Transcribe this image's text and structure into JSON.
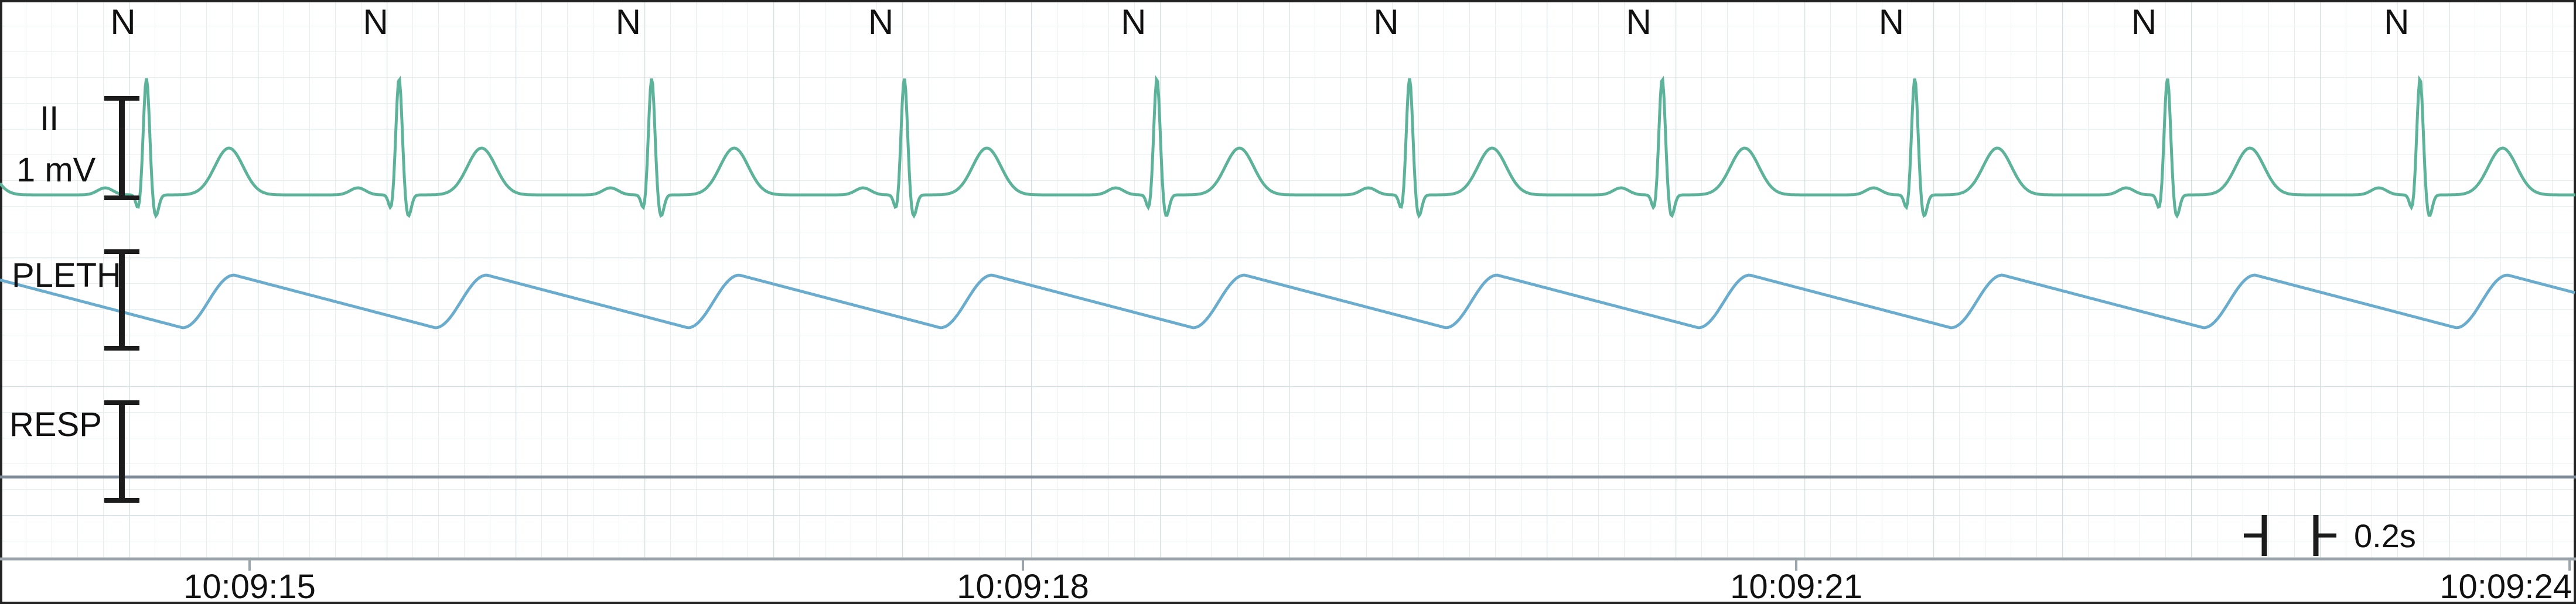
{
  "chart_data": {
    "type": "line",
    "beat_labels": [
      "N",
      "N",
      "N",
      "N",
      "N",
      "N",
      "N",
      "N",
      "N",
      "N"
    ],
    "beat_times_s": [
      0.0,
      0.98,
      1.96,
      2.94,
      3.92,
      4.9,
      5.88,
      6.86,
      7.84,
      8.82
    ],
    "time_ticks": [
      "10:09:15",
      "10:09:18",
      "10:09:21",
      "10:09:24"
    ],
    "time_tick_seconds": [
      0.4,
      3.4,
      6.4,
      9.4
    ],
    "time_range_s": [
      -0.5,
      9.5
    ],
    "scale_bar": {
      "label": "0.2s",
      "duration_s": 0.2
    },
    "series": [
      {
        "name": "II",
        "unit_label": "1 mV",
        "color": "#5db29a",
        "kind": "ecg"
      },
      {
        "name": "PLETH",
        "color": "#6aaccd",
        "kind": "pleth"
      },
      {
        "name": "RESP",
        "color": "#7d8c98",
        "kind": "flat"
      }
    ],
    "grid": true
  }
}
